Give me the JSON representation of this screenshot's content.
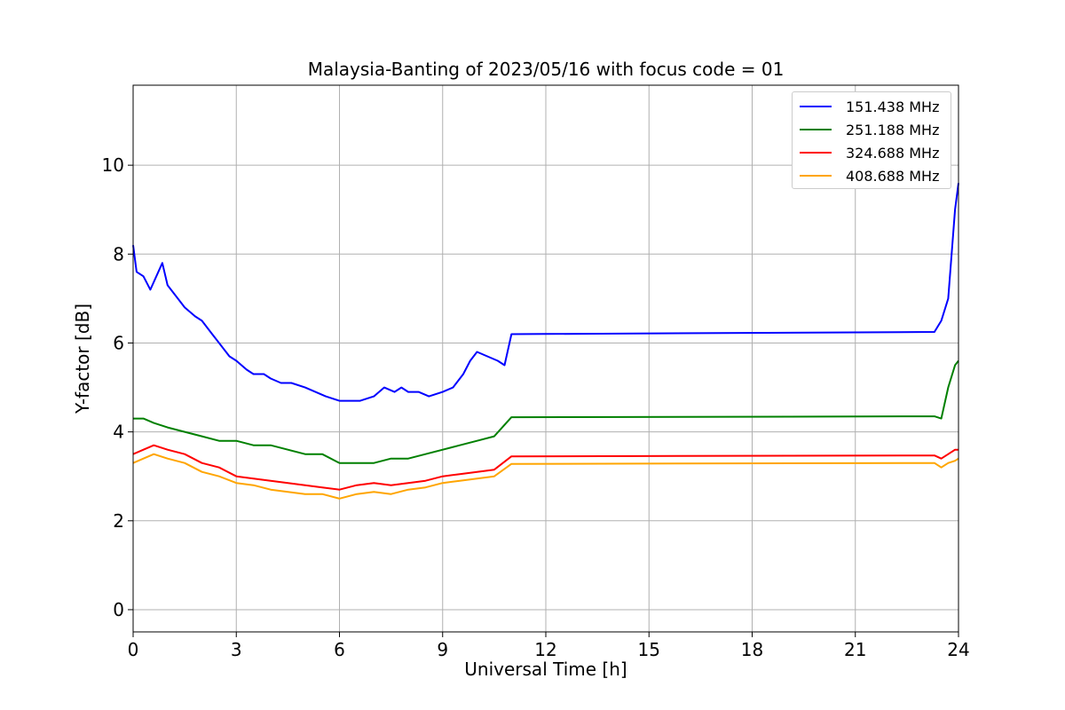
{
  "chart_data": {
    "type": "line",
    "title": "Malaysia-Banting of 2023/05/16 with focus code = 01",
    "xlabel": "Universal Time [h]",
    "ylabel": "Y-factor [dB]",
    "xlim": [
      0,
      24
    ],
    "ylim": [
      -0.5,
      11.8
    ],
    "xticks": [
      0,
      3,
      6,
      9,
      12,
      15,
      18,
      21,
      24
    ],
    "yticks": [
      0,
      2,
      4,
      6,
      8,
      10
    ],
    "grid": true,
    "legend_position": "top-right",
    "series": [
      {
        "name": "151.438 MHz",
        "color": "#0000ff",
        "x": [
          0,
          0.1,
          0.3,
          0.5,
          0.85,
          1.0,
          1.3,
          1.5,
          1.8,
          2.0,
          2.3,
          2.5,
          2.8,
          3.0,
          3.3,
          3.5,
          3.8,
          4.0,
          4.3,
          4.6,
          5.0,
          5.3,
          5.6,
          6.0,
          6.3,
          6.6,
          7.0,
          7.3,
          7.6,
          7.8,
          8.0,
          8.3,
          8.6,
          9.0,
          9.3,
          9.6,
          9.8,
          10.0,
          10.3,
          10.6,
          10.8,
          11.0,
          23.3,
          23.5,
          23.7,
          23.9,
          24.0
        ],
        "y": [
          8.2,
          7.6,
          7.5,
          7.2,
          7.8,
          7.3,
          7.0,
          6.8,
          6.6,
          6.5,
          6.2,
          6.0,
          5.7,
          5.6,
          5.4,
          5.3,
          5.3,
          5.2,
          5.1,
          5.1,
          5.0,
          4.9,
          4.8,
          4.7,
          4.7,
          4.7,
          4.8,
          5.0,
          4.9,
          5.0,
          4.9,
          4.9,
          4.8,
          4.9,
          5.0,
          5.3,
          5.6,
          5.8,
          5.7,
          5.6,
          5.5,
          6.2,
          6.25,
          6.5,
          7.0,
          9.0,
          9.6
        ]
      },
      {
        "name": "251.188 MHz",
        "color": "#008000",
        "x": [
          0,
          0.3,
          0.6,
          1.0,
          1.5,
          2.0,
          2.5,
          3.0,
          3.5,
          4.0,
          4.5,
          5.0,
          5.5,
          6.0,
          6.5,
          7.0,
          7.5,
          8.0,
          8.5,
          9.0,
          9.5,
          10.0,
          10.5,
          11.0,
          23.3,
          23.5,
          23.7,
          23.9,
          24.0
        ],
        "y": [
          4.3,
          4.3,
          4.2,
          4.1,
          4.0,
          3.9,
          3.8,
          3.8,
          3.7,
          3.7,
          3.6,
          3.5,
          3.5,
          3.3,
          3.3,
          3.3,
          3.4,
          3.4,
          3.5,
          3.6,
          3.7,
          3.8,
          3.9,
          4.33,
          4.35,
          4.3,
          5.0,
          5.5,
          5.6
        ]
      },
      {
        "name": "324.688 MHz",
        "color": "#ff0000",
        "x": [
          0,
          0.3,
          0.6,
          1.0,
          1.5,
          2.0,
          2.5,
          3.0,
          3.5,
          4.0,
          4.5,
          5.0,
          5.5,
          6.0,
          6.5,
          7.0,
          7.5,
          8.0,
          8.5,
          9.0,
          9.5,
          10.0,
          10.5,
          11.0,
          23.3,
          23.5,
          23.7,
          23.9,
          24.0
        ],
        "y": [
          3.5,
          3.6,
          3.7,
          3.6,
          3.5,
          3.3,
          3.2,
          3.0,
          2.95,
          2.9,
          2.85,
          2.8,
          2.75,
          2.7,
          2.8,
          2.85,
          2.8,
          2.85,
          2.9,
          3.0,
          3.05,
          3.1,
          3.15,
          3.45,
          3.47,
          3.4,
          3.5,
          3.6,
          3.6
        ]
      },
      {
        "name": "408.688 MHz",
        "color": "#ffa500",
        "x": [
          0,
          0.3,
          0.6,
          1.0,
          1.5,
          2.0,
          2.5,
          3.0,
          3.5,
          4.0,
          4.5,
          5.0,
          5.5,
          6.0,
          6.5,
          7.0,
          7.5,
          8.0,
          8.5,
          9.0,
          9.5,
          10.0,
          10.5,
          11.0,
          23.3,
          23.5,
          23.7,
          23.9,
          24.0
        ],
        "y": [
          3.3,
          3.4,
          3.5,
          3.4,
          3.3,
          3.1,
          3.0,
          2.85,
          2.8,
          2.7,
          2.65,
          2.6,
          2.6,
          2.5,
          2.6,
          2.65,
          2.6,
          2.7,
          2.75,
          2.85,
          2.9,
          2.95,
          3.0,
          3.28,
          3.3,
          3.2,
          3.3,
          3.35,
          3.4
        ]
      }
    ]
  }
}
